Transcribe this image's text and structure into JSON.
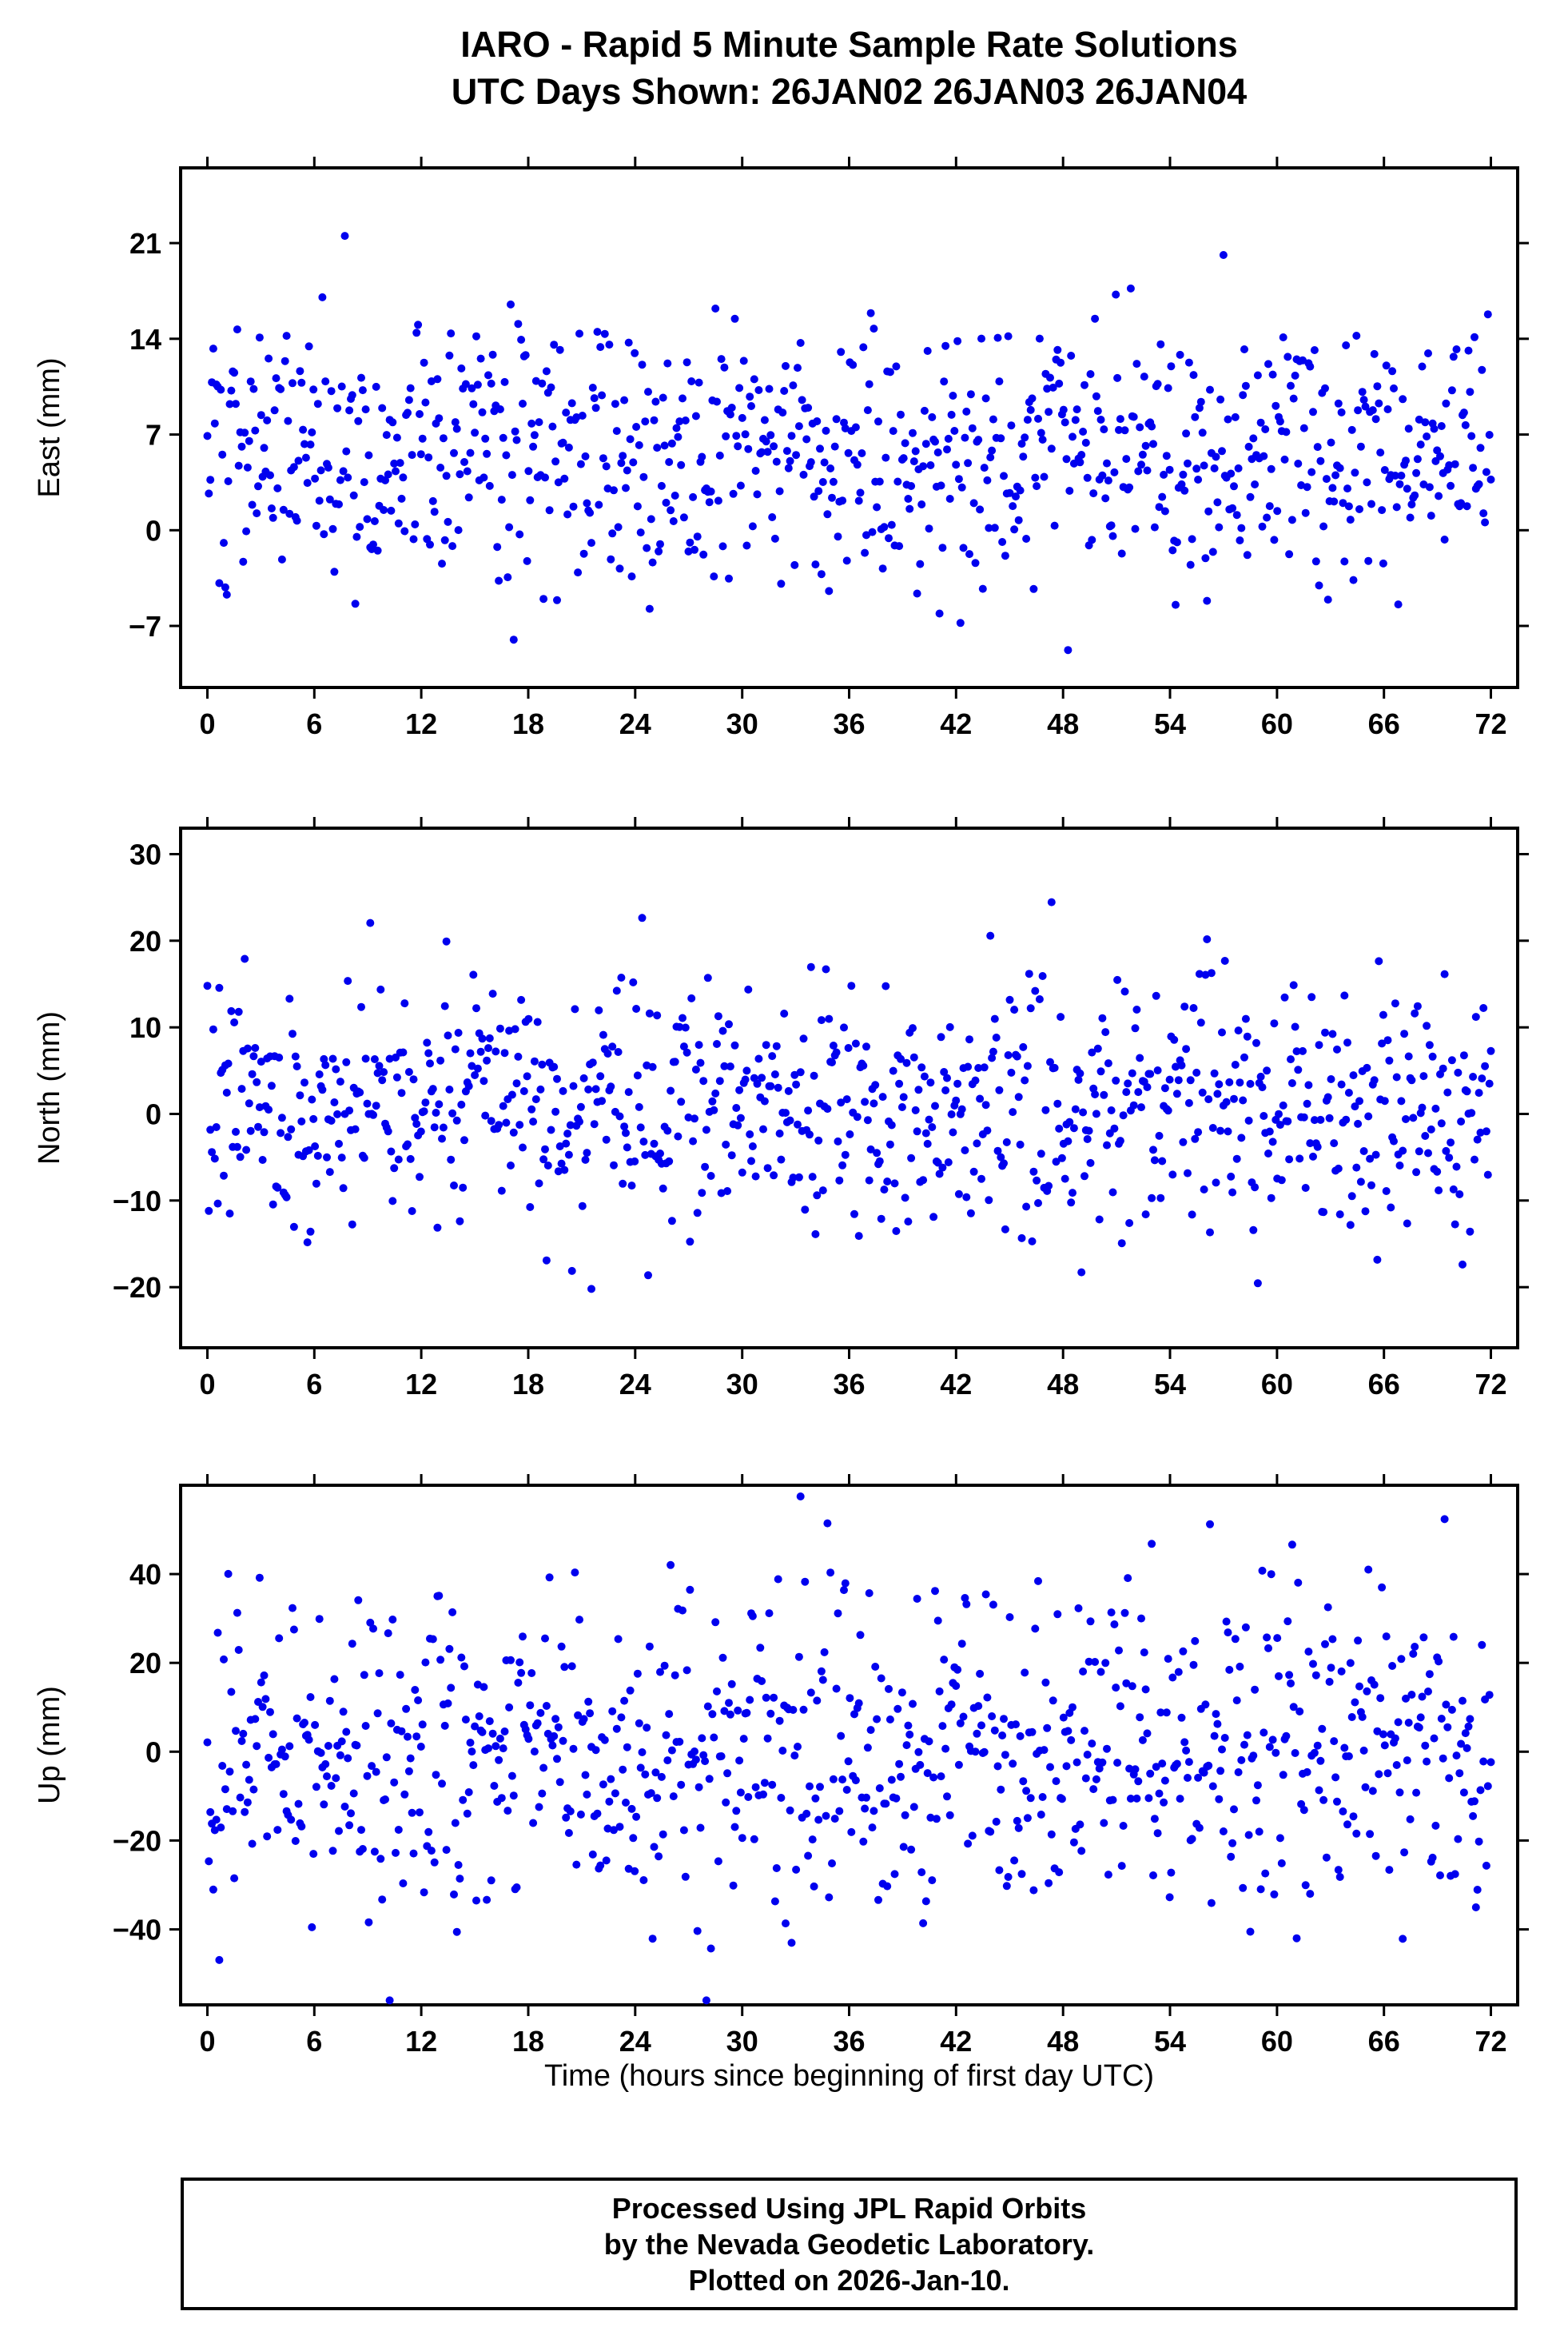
{
  "title": {
    "line1": "IARO - Rapid 5 Minute Sample Rate Solutions",
    "line2": "UTC Days Shown:  26JAN02 26JAN03 26JAN04"
  },
  "x_axis_label": "Time (hours since beginning of first day UTC)",
  "footer": {
    "line1": "Processed Using JPL Rapid Orbits",
    "line2": "by the Nevada Geodetic Laboratory.",
    "line3": "Plotted on 2026-Jan-10."
  },
  "style": {
    "point_color": "#0000ee",
    "frame_color": "#000000"
  },
  "chart_data": [
    {
      "type": "scatter",
      "title": "",
      "ylabel": "East (mm)",
      "xlabel": "",
      "xlim": [
        -1.5,
        73.5
      ],
      "ylim": [
        -11.5,
        26.5
      ],
      "xticks": [
        0,
        6,
        12,
        18,
        24,
        30,
        36,
        42,
        48,
        54,
        60,
        66,
        72
      ],
      "yticks": [
        -7,
        0,
        7,
        14,
        21
      ],
      "grid": false,
      "legend": false,
      "series": [
        {
          "name": "east",
          "model": "gaussian-scatter",
          "count": 860,
          "x_start": 0,
          "x_end": 72,
          "mean": 6,
          "std": 4.8,
          "clip": [
            -11,
            25.8
          ],
          "seed": 101
        }
      ]
    },
    {
      "type": "scatter",
      "title": "",
      "ylabel": "North (mm)",
      "xlabel": "",
      "xlim": [
        -1.5,
        73.5
      ],
      "ylim": [
        -27,
        33
      ],
      "xticks": [
        0,
        6,
        12,
        18,
        24,
        30,
        36,
        42,
        48,
        54,
        60,
        66,
        72
      ],
      "yticks": [
        -20,
        -10,
        0,
        10,
        20,
        30
      ],
      "grid": false,
      "legend": false,
      "series": [
        {
          "name": "north",
          "model": "gaussian-scatter",
          "count": 860,
          "x_start": 0,
          "x_end": 72,
          "mean": 1,
          "std": 7,
          "clip": [
            -26.5,
            32.5
          ],
          "seed": 202
        }
      ]
    },
    {
      "type": "scatter",
      "title": "",
      "ylabel": "Up (mm)",
      "xlabel": "Time (hours since beginning of first day UTC)",
      "xlim": [
        -1.5,
        73.5
      ],
      "ylim": [
        -57,
        60
      ],
      "xticks": [
        0,
        6,
        12,
        18,
        24,
        30,
        36,
        42,
        48,
        54,
        60,
        66,
        72
      ],
      "yticks": [
        -40,
        -20,
        0,
        20,
        40
      ],
      "grid": false,
      "legend": false,
      "series": [
        {
          "name": "up",
          "model": "gaussian-scatter",
          "count": 860,
          "x_start": 0,
          "x_end": 72,
          "mean": 0,
          "std": 17,
          "clip": [
            -56,
            58
          ],
          "seed": 303
        }
      ]
    }
  ]
}
